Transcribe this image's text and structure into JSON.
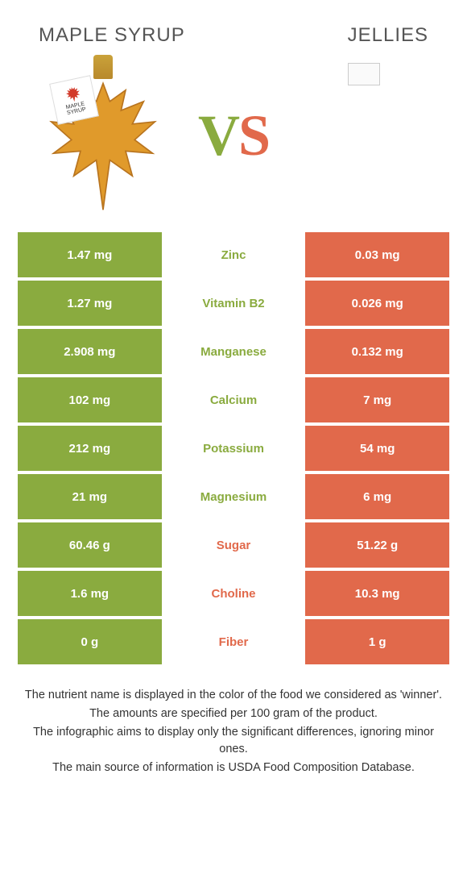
{
  "header": {
    "left_title": "Maple syrup",
    "right_title": "Jellies",
    "vs_v": "V",
    "vs_s": "S",
    "tag_line1": "MAPLE",
    "tag_line2": "SYRUP"
  },
  "colors": {
    "left_bg": "#8aab3f",
    "left_fg": "#ffffff",
    "right_bg": "#e1694b",
    "right_fg": "#ffffff",
    "mid_left_winner": "#8aab3f",
    "mid_right_winner": "#e1694b",
    "maple_fill": "#e09a2b",
    "maple_stroke": "#b8741f",
    "tag_leaf": "#d23a2a"
  },
  "rows": [
    {
      "left": "1.47 mg",
      "label": "Zinc",
      "right": "0.03 mg",
      "winner": "left"
    },
    {
      "left": "1.27 mg",
      "label": "Vitamin B2",
      "right": "0.026 mg",
      "winner": "left"
    },
    {
      "left": "2.908 mg",
      "label": "Manganese",
      "right": "0.132 mg",
      "winner": "left"
    },
    {
      "left": "102 mg",
      "label": "Calcium",
      "right": "7 mg",
      "winner": "left"
    },
    {
      "left": "212 mg",
      "label": "Potassium",
      "right": "54 mg",
      "winner": "left"
    },
    {
      "left": "21 mg",
      "label": "Magnesium",
      "right": "6 mg",
      "winner": "left"
    },
    {
      "left": "60.46 g",
      "label": "Sugar",
      "right": "51.22 g",
      "winner": "right"
    },
    {
      "left": "1.6 mg",
      "label": "Choline",
      "right": "10.3 mg",
      "winner": "right"
    },
    {
      "left": "0 g",
      "label": "Fiber",
      "right": "1 g",
      "winner": "right"
    }
  ],
  "footnotes": [
    "The nutrient name is displayed in the color of the food we considered as 'winner'.",
    "The amounts are specified per 100 gram of the product.",
    "The infographic aims to display only the significant differences, ignoring minor ones.",
    "The main source of information is USDA Food Composition Database."
  ]
}
